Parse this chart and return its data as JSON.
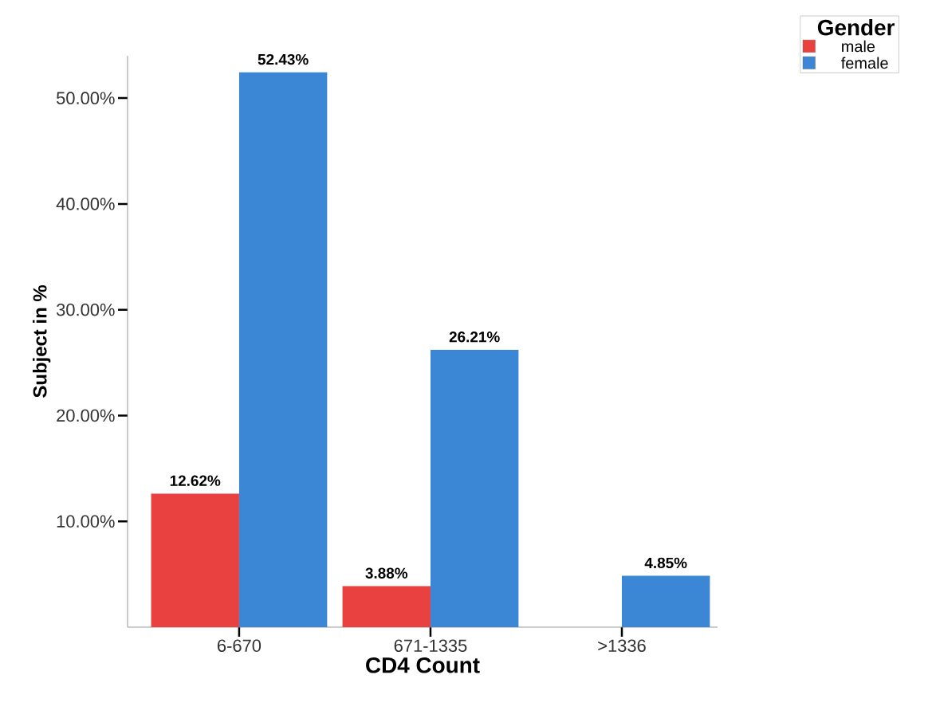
{
  "chart_data": {
    "type": "bar",
    "xlabel": "CD4 Count",
    "ylabel": "Subject in %",
    "legend_title": "Gender",
    "categories": [
      "6-670",
      "671-1335",
      ">1336"
    ],
    "series": [
      {
        "name": "male",
        "color": "#e8413f",
        "values": [
          12.62,
          3.88,
          null
        ],
        "value_labels": [
          "12.62%",
          "3.88%",
          null
        ]
      },
      {
        "name": "female",
        "color": "#3b87d5",
        "values": [
          52.43,
          26.21,
          4.85
        ],
        "value_labels": [
          "52.43%",
          "26.21%",
          "4.85%"
        ]
      }
    ],
    "ylim": [
      0,
      54
    ],
    "yticks": [
      {
        "value": 10,
        "label": "10.00%"
      },
      {
        "value": 20,
        "label": "20.00%"
      },
      {
        "value": 30,
        "label": "30.00%"
      },
      {
        "value": 40,
        "label": "40.00%"
      },
      {
        "value": 50,
        "label": "50.00%"
      }
    ],
    "grid": false,
    "legend": "top right"
  }
}
